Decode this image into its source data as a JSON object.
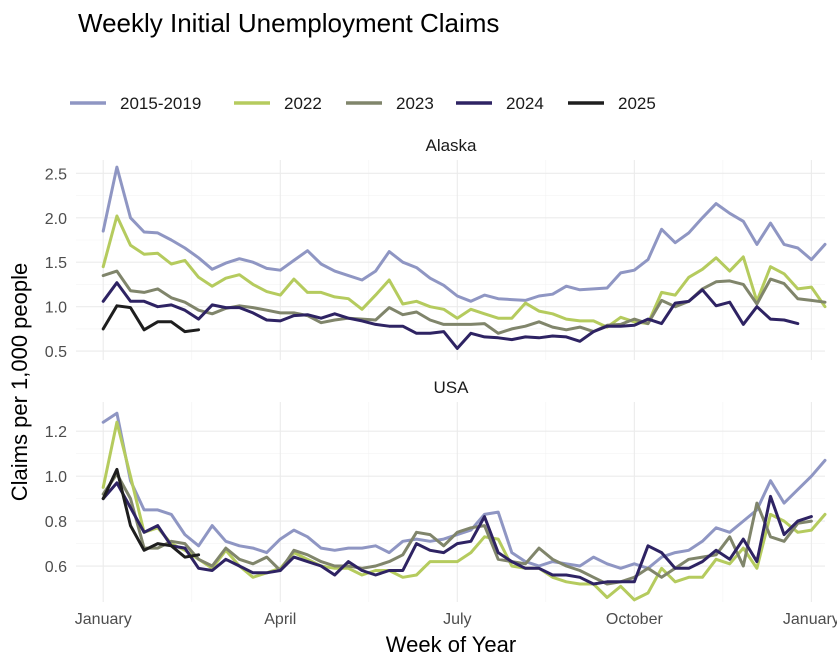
{
  "chart_data": {
    "type": "line",
    "title": "Weekly Initial Unemployment Claims",
    "xlabel": "Week of Year",
    "ylabel": "Claims per 1,000 people",
    "x_ticks": [
      {
        "label": "January",
        "week": 1
      },
      {
        "label": "April",
        "week": 14
      },
      {
        "label": "July",
        "week": 27
      },
      {
        "label": "October",
        "week": 40
      },
      {
        "label": "January",
        "week": 53
      }
    ],
    "xlim": [
      -1,
      54
    ],
    "legend": [
      "2015-2019",
      "2022",
      "2023",
      "2024",
      "2025"
    ],
    "colors": {
      "2015-2019": "#8f96c3",
      "2022": "#b5cb5e",
      "2023": "#80856b",
      "2024": "#2e2363",
      "2025": "#1e1e1e"
    },
    "panels": [
      {
        "title": "Alaska",
        "ylim": [
          0.4,
          2.65
        ],
        "y_ticks": [
          0.5,
          1.0,
          1.5,
          2.0,
          2.5
        ],
        "y_tick_labels": [
          "0.5",
          "1.0",
          "1.5",
          "2.0",
          "2.5"
        ],
        "series": [
          {
            "name": "2015-2019",
            "values": [
              1.85,
              2.57,
              2.0,
              1.84,
              1.83,
              1.75,
              1.66,
              1.55,
              1.42,
              1.49,
              1.54,
              1.5,
              1.43,
              1.41,
              1.52,
              1.63,
              1.48,
              1.4,
              1.35,
              1.3,
              1.4,
              1.62,
              1.5,
              1.44,
              1.32,
              1.24,
              1.12,
              1.06,
              1.13,
              1.09,
              1.08,
              1.07,
              1.12,
              1.14,
              1.23,
              1.19,
              1.2,
              1.21,
              1.38,
              1.41,
              1.53,
              1.87,
              1.72,
              1.83,
              2.0,
              2.16,
              2.05,
              1.96,
              1.7,
              1.94,
              1.7,
              1.66,
              1.53,
              1.7
            ]
          },
          {
            "name": "2022",
            "values": [
              1.45,
              2.02,
              1.69,
              1.59,
              1.6,
              1.48,
              1.52,
              1.33,
              1.23,
              1.32,
              1.36,
              1.25,
              1.17,
              1.13,
              1.31,
              1.16,
              1.16,
              1.11,
              1.09,
              0.97,
              1.13,
              1.3,
              1.03,
              1.06,
              1.0,
              0.97,
              0.87,
              0.97,
              0.92,
              0.87,
              0.87,
              1.04,
              0.95,
              0.92,
              0.86,
              0.84,
              0.84,
              0.77,
              0.88,
              0.83,
              0.81,
              1.16,
              1.13,
              1.33,
              1.42,
              1.55,
              1.4,
              1.56,
              1.06,
              1.45,
              1.37,
              1.2,
              1.22,
              1.0
            ]
          },
          {
            "name": "2023",
            "values": [
              1.35,
              1.4,
              1.18,
              1.16,
              1.2,
              1.1,
              1.05,
              0.96,
              0.92,
              0.98,
              1.01,
              0.99,
              0.96,
              0.93,
              0.93,
              0.9,
              0.82,
              0.85,
              0.87,
              0.86,
              0.85,
              0.99,
              0.91,
              0.94,
              0.85,
              0.8,
              0.8,
              0.8,
              0.81,
              0.7,
              0.75,
              0.78,
              0.83,
              0.77,
              0.74,
              0.77,
              0.72,
              0.79,
              0.8,
              0.86,
              0.81,
              1.07,
              1.0,
              1.06,
              1.2,
              1.28,
              1.29,
              1.25,
              1.03,
              1.31,
              1.26,
              1.09,
              1.07,
              1.05
            ]
          },
          {
            "name": "2024",
            "values": [
              1.06,
              1.27,
              1.06,
              1.06,
              1.0,
              1.02,
              0.96,
              0.86,
              1.02,
              0.99,
              0.99,
              0.93,
              0.85,
              0.84,
              0.9,
              0.91,
              0.87,
              0.92,
              0.87,
              0.84,
              0.8,
              0.78,
              0.78,
              0.7,
              0.7,
              0.72,
              0.53,
              0.7,
              0.66,
              0.65,
              0.63,
              0.66,
              0.65,
              0.67,
              0.66,
              0.61,
              0.72,
              0.78,
              0.78,
              0.79,
              0.86,
              0.81,
              1.04,
              1.06,
              1.19,
              1.01,
              1.05,
              0.8,
              1.0,
              0.86,
              0.85,
              0.81
            ]
          },
          {
            "name": "2025",
            "values": [
              0.75,
              1.01,
              0.99,
              0.74,
              0.83,
              0.83,
              0.72,
              0.74
            ]
          }
        ]
      },
      {
        "title": "USA",
        "ylim": [
          0.44,
          1.33
        ],
        "y_ticks": [
          0.6,
          0.8,
          1.0,
          1.2
        ],
        "y_tick_labels": [
          "0.6",
          "0.8",
          "1.0",
          "1.2"
        ],
        "series": [
          {
            "name": "2015-2019",
            "values": [
              1.24,
              1.28,
              0.98,
              0.85,
              0.85,
              0.83,
              0.74,
              0.69,
              0.78,
              0.71,
              0.69,
              0.68,
              0.66,
              0.72,
              0.76,
              0.73,
              0.68,
              0.67,
              0.68,
              0.68,
              0.69,
              0.66,
              0.71,
              0.72,
              0.71,
              0.72,
              0.74,
              0.76,
              0.83,
              0.84,
              0.66,
              0.62,
              0.6,
              0.62,
              0.61,
              0.6,
              0.64,
              0.61,
              0.59,
              0.61,
              0.59,
              0.64,
              0.66,
              0.67,
              0.71,
              0.77,
              0.75,
              0.8,
              0.85,
              0.98,
              0.88,
              0.94,
              1.0,
              1.07
            ]
          },
          {
            "name": "2022",
            "values": [
              0.95,
              1.24,
              1.0,
              0.75,
              0.77,
              0.7,
              0.67,
              0.63,
              0.59,
              0.67,
              0.6,
              0.55,
              0.57,
              0.59,
              0.66,
              0.63,
              0.6,
              0.59,
              0.59,
              0.56,
              0.58,
              0.58,
              0.55,
              0.56,
              0.62,
              0.62,
              0.62,
              0.66,
              0.73,
              0.72,
              0.6,
              0.59,
              0.59,
              0.55,
              0.53,
              0.52,
              0.52,
              0.46,
              0.51,
              0.45,
              0.48,
              0.59,
              0.53,
              0.55,
              0.55,
              0.63,
              0.61,
              0.68,
              0.59,
              0.83,
              0.8,
              0.75,
              0.76,
              0.83
            ]
          },
          {
            "name": "2023",
            "values": [
              0.92,
              1.01,
              0.9,
              0.68,
              0.68,
              0.71,
              0.7,
              0.63,
              0.6,
              0.68,
              0.63,
              0.61,
              0.64,
              0.58,
              0.67,
              0.65,
              0.62,
              0.6,
              0.6,
              0.59,
              0.6,
              0.62,
              0.65,
              0.75,
              0.74,
              0.69,
              0.75,
              0.77,
              0.78,
              0.63,
              0.62,
              0.61,
              0.68,
              0.63,
              0.6,
              0.58,
              0.55,
              0.52,
              0.53,
              0.55,
              0.59,
              0.55,
              0.59,
              0.63,
              0.64,
              0.65,
              0.73,
              0.6,
              0.88,
              0.73,
              0.71,
              0.79,
              0.8
            ]
          },
          {
            "name": "2024",
            "values": [
              0.9,
              0.97,
              0.86,
              0.75,
              0.78,
              0.69,
              0.68,
              0.59,
              0.58,
              0.63,
              0.6,
              0.57,
              0.57,
              0.58,
              0.64,
              0.62,
              0.6,
              0.56,
              0.62,
              0.58,
              0.56,
              0.58,
              0.58,
              0.7,
              0.67,
              0.66,
              0.7,
              0.71,
              0.82,
              0.66,
              0.62,
              0.59,
              0.59,
              0.56,
              0.56,
              0.55,
              0.52,
              0.53,
              0.53,
              0.53,
              0.69,
              0.66,
              0.59,
              0.59,
              0.62,
              0.67,
              0.63,
              0.72,
              0.62,
              0.91,
              0.74,
              0.8,
              0.82
            ]
          },
          {
            "name": "2025",
            "values": [
              0.9,
              1.03,
              0.78,
              0.67,
              0.7,
              0.69,
              0.64,
              0.65
            ]
          }
        ]
      }
    ]
  }
}
